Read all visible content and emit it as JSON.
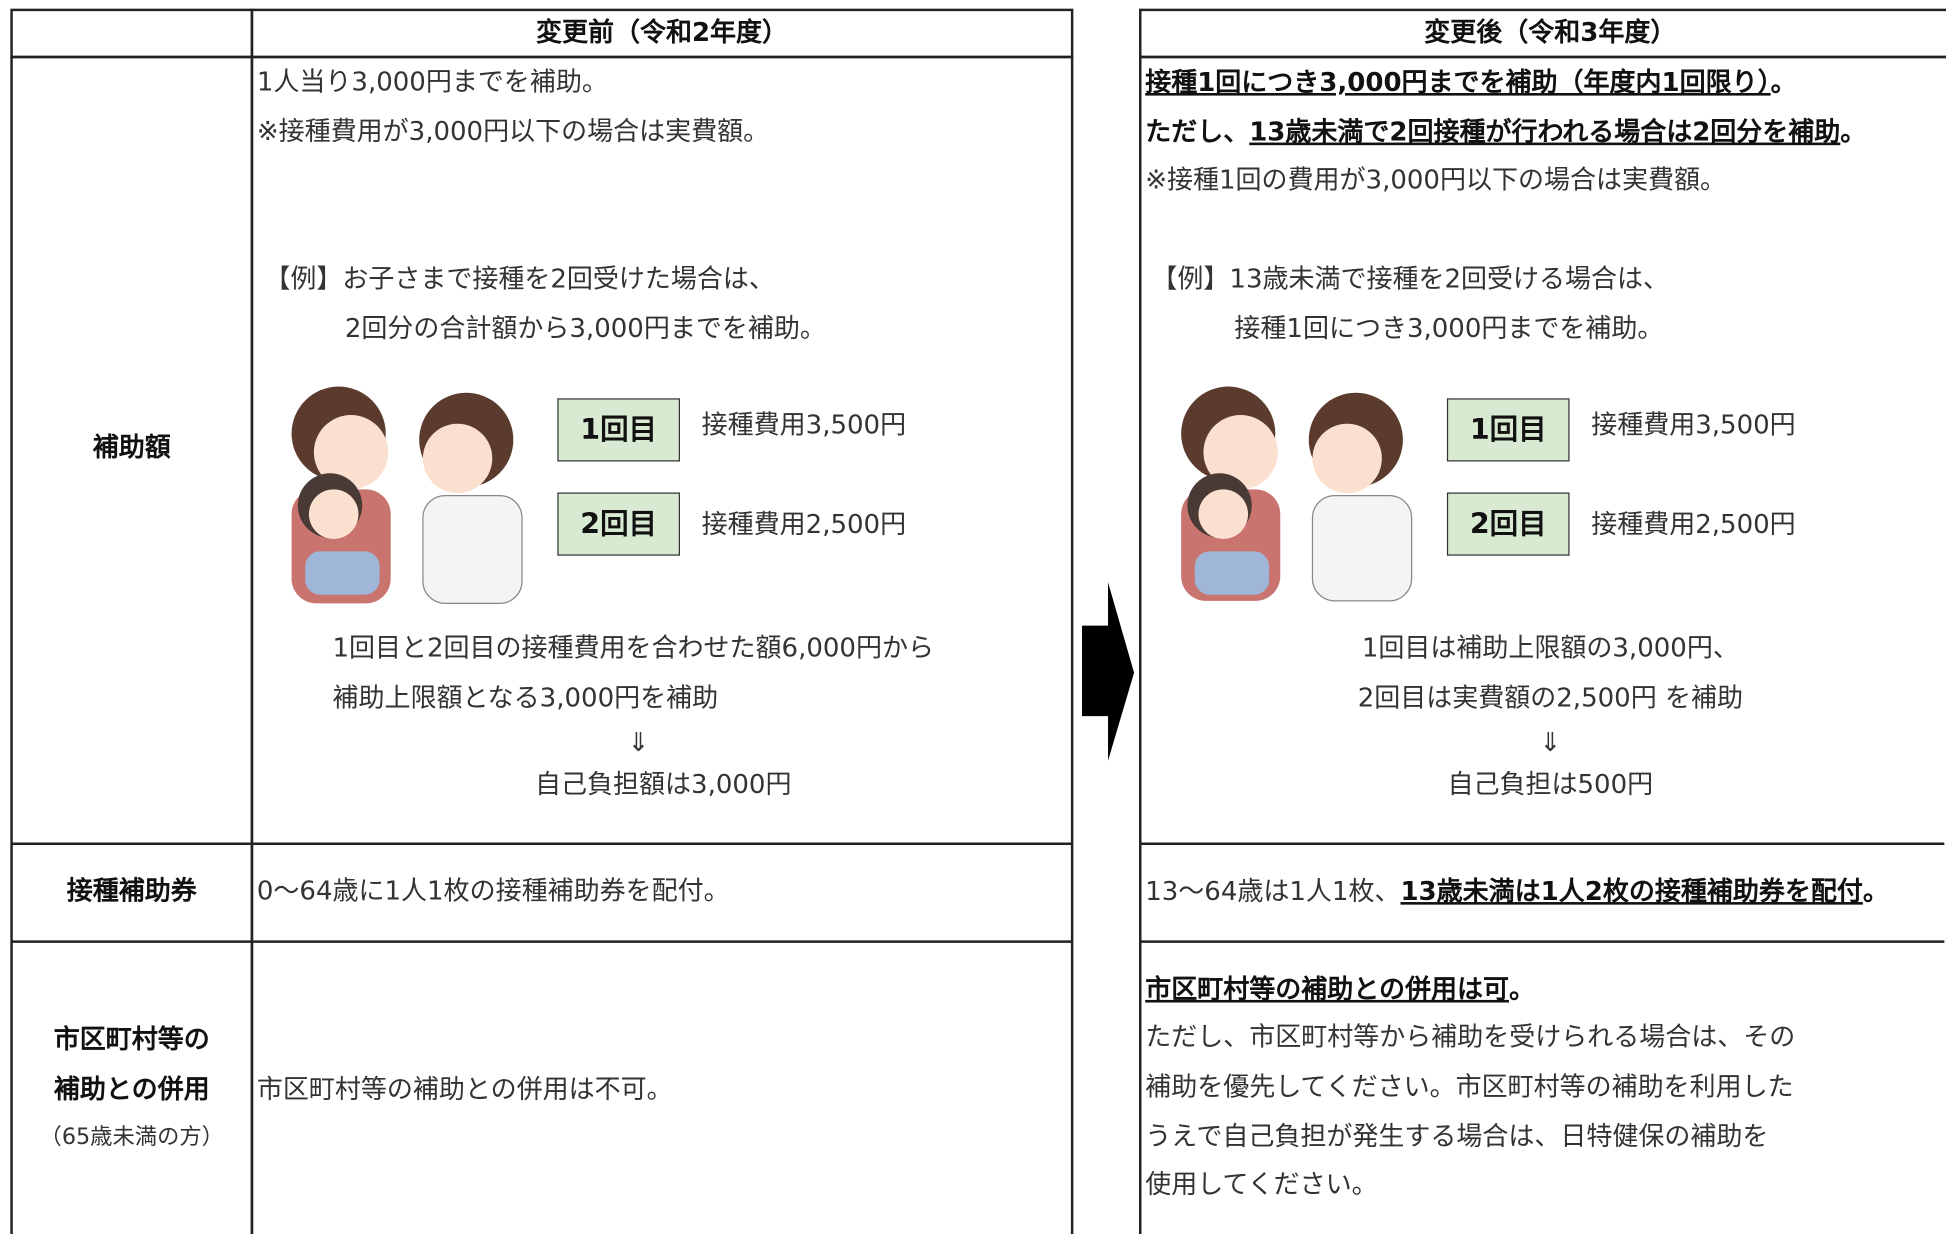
{
  "row_labels": {
    "subsidy": "補助額",
    "voucher": "接種補助券",
    "combined": [
      "市区町村等の",
      "補助との併用"
    ],
    "combined_note": "（65歳未満の方）"
  },
  "before": {
    "header": "変更前（令和2年度）",
    "subsidy": {
      "lines": [
        "1人当り3,000円までを補助。",
        "※接種費用が3,000円以下の場合は実費額。"
      ],
      "example": [
        "【例】お子さまで接種を2回受けた場合は、",
        "2回分の合計額から3,000円までを補助。"
      ],
      "doses": [
        {
          "label": "1回目",
          "cost": "接種費用3,500円"
        },
        {
          "label": "2回目",
          "cost": "接種費用2,500円"
        }
      ],
      "calc": [
        "1回目と2回目の接種費用を合わせた額6,000円から",
        "補助上限額となる3,000円を補助",
        "⇓",
        "自己負担額は3,000円"
      ]
    },
    "voucher": "0〜64歳に1人1枚の接種補助券を配付。",
    "combined": "市区町村等の補助との併用は不可。"
  },
  "after": {
    "header": "変更後（令和3年度）",
    "subsidy": {
      "line1": [
        "接種1回につき3,000円までを補助（年度内1回限り）",
        "。"
      ],
      "line2": [
        "ただし、",
        "13歳未満で2回接種が行われる場合は2回分を補助",
        "。"
      ],
      "line3": "※接種1回の費用が3,000円以下の場合は実費額。",
      "example": [
        "【例】13歳未満で接種を2回受ける場合は、",
        "接種1回につき3,000円までを補助。"
      ],
      "doses": [
        {
          "label": "1回目",
          "cost": "接種費用3,500円"
        },
        {
          "label": "2回目",
          "cost": "接種費用2,500円"
        }
      ],
      "calc": [
        "1回目は補助上限額の3,000円、",
        "2回目は実費額の2,500円 を補助",
        "⇓",
        "自己負担は500円"
      ]
    },
    "voucher": [
      "13〜64歳は1人1枚、",
      "13歳未満は1人2枚の接種補助券を配付",
      "。"
    ],
    "combined": {
      "first": [
        "市区町村等の補助との併用は可",
        "。"
      ],
      "lines": [
        "ただし、市区町村等から補助を受けられる場合は、その",
        "補助を優先してください。市区町村等の補助を利用した",
        "うえで自己負担が発生する場合は、日特健保の補助を",
        "使用してください。"
      ]
    }
  }
}
